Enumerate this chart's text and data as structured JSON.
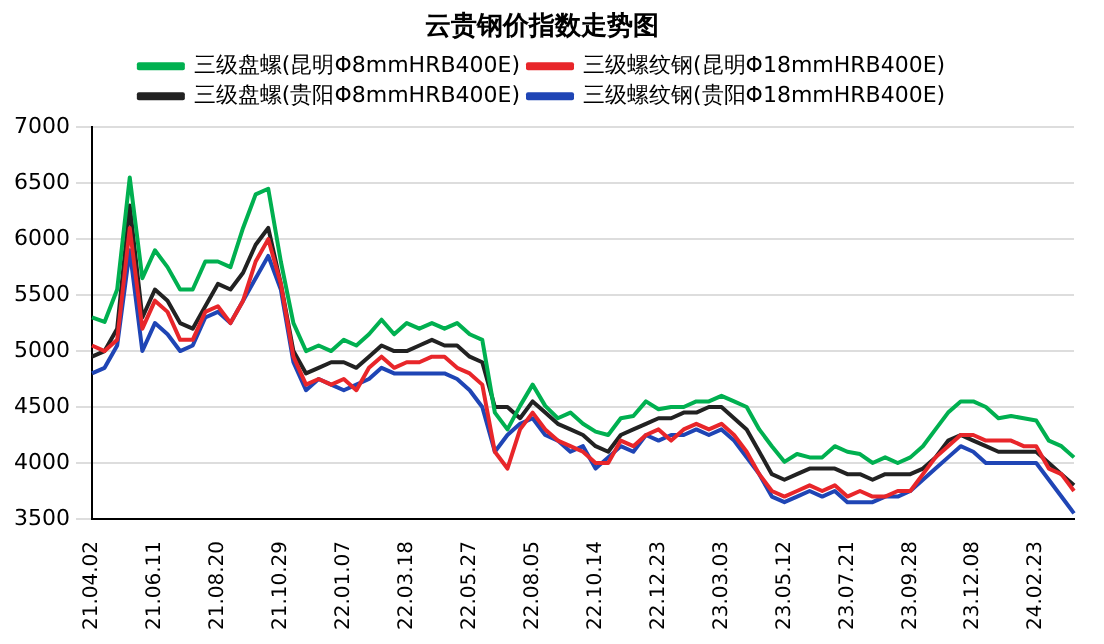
{
  "chart_data": {
    "type": "line",
    "title": "云贵钢价指数走势图",
    "categories": [
      "21.04.02",
      null,
      null,
      null,
      null,
      "21.06.11",
      null,
      null,
      null,
      null,
      "21.08.20",
      null,
      null,
      null,
      null,
      "21.10.29",
      null,
      null,
      null,
      null,
      "22.01.07",
      null,
      null,
      null,
      null,
      "22.03.18",
      null,
      null,
      null,
      null,
      "22.05.27",
      null,
      null,
      null,
      null,
      "22.08.05",
      null,
      null,
      null,
      null,
      "22.10.14",
      null,
      null,
      null,
      null,
      "22.12.23",
      null,
      null,
      null,
      null,
      "23.03.03",
      null,
      null,
      null,
      null,
      "23.05.12",
      null,
      null,
      null,
      null,
      "23.07.21",
      null,
      null,
      null,
      null,
      "23.09.28",
      null,
      null,
      null,
      null,
      "23.12.08",
      null,
      null,
      null,
      null,
      "24.02.23",
      null,
      null,
      null
    ],
    "series": [
      {
        "name": "三级盘螺(昆明Φ8mmHRB400E)",
        "color": "#00b050",
        "values": [
          5300,
          5260,
          5550,
          6550,
          5650,
          5900,
          5750,
          5550,
          5550,
          5800,
          5800,
          5750,
          6100,
          6400,
          6450,
          5800,
          5250,
          5000,
          5050,
          5000,
          5100,
          5050,
          5150,
          5280,
          5150,
          5250,
          5200,
          5250,
          5200,
          5250,
          5150,
          5100,
          4450,
          4300,
          4510,
          4700,
          4510,
          4400,
          4450,
          4350,
          4280,
          4250,
          4400,
          4420,
          4550,
          4480,
          4500,
          4500,
          4550,
          4550,
          4600,
          4550,
          4500,
          4300,
          4150,
          4010,
          4080,
          4050,
          4050,
          4150,
          4100,
          4080,
          4000,
          4050,
          4000,
          4050,
          4150,
          4300,
          4450,
          4550,
          4550,
          4500,
          4400,
          4420,
          4400,
          4380,
          4200,
          4150,
          4050
        ]
      },
      {
        "name": "三级螺纹钢(昆明Φ18mmHRB400E)",
        "color": "#e8262a",
        "values": [
          5050,
          5000,
          5100,
          6100,
          5200,
          5450,
          5350,
          5100,
          5100,
          5350,
          5400,
          5250,
          5450,
          5800,
          6000,
          5600,
          4950,
          4700,
          4750,
          4700,
          4750,
          4650,
          4850,
          4950,
          4850,
          4900,
          4900,
          4950,
          4950,
          4850,
          4800,
          4700,
          4100,
          3950,
          4300,
          4450,
          4300,
          4200,
          4150,
          4100,
          4000,
          4000,
          4200,
          4150,
          4250,
          4300,
          4200,
          4300,
          4350,
          4300,
          4350,
          4250,
          4100,
          3900,
          3750,
          3700,
          3750,
          3800,
          3750,
          3800,
          3700,
          3750,
          3700,
          3700,
          3750,
          3750,
          3900,
          4050,
          4150,
          4250,
          4250,
          4200,
          4200,
          4200,
          4150,
          4150,
          3950,
          3900,
          3750
        ]
      },
      {
        "name": "三级盘螺(贵阳Φ8mmHRB400E)",
        "color": "#222222",
        "values": [
          4950,
          5000,
          5200,
          6300,
          5300,
          5550,
          5450,
          5250,
          5200,
          5400,
          5600,
          5550,
          5700,
          5950,
          6100,
          5600,
          5000,
          4800,
          4850,
          4900,
          4900,
          4850,
          4950,
          5050,
          5000,
          5000,
          5050,
          5100,
          5050,
          5050,
          4950,
          4900,
          4500,
          4500,
          4400,
          4550,
          4450,
          4350,
          4300,
          4250,
          4150,
          4100,
          4250,
          4300,
          4350,
          4400,
          4400,
          4450,
          4450,
          4500,
          4500,
          4400,
          4300,
          4100,
          3900,
          3850,
          3900,
          3950,
          3950,
          3950,
          3900,
          3900,
          3850,
          3900,
          3900,
          3900,
          3950,
          4050,
          4200,
          4250,
          4200,
          4150,
          4100,
          4100,
          4100,
          4100,
          4000,
          3900,
          3800
        ]
      },
      {
        "name": "三级螺纹钢(贵阳Φ18mmHRB400E)",
        "color": "#1f45b5",
        "values": [
          4800,
          4850,
          5050,
          5900,
          5000,
          5250,
          5150,
          5000,
          5050,
          5300,
          5350,
          5250,
          5450,
          5650,
          5850,
          5550,
          4900,
          4650,
          4750,
          4700,
          4650,
          4700,
          4750,
          4850,
          4800,
          4800,
          4800,
          4800,
          4800,
          4750,
          4650,
          4500,
          4100,
          4250,
          4350,
          4400,
          4250,
          4200,
          4100,
          4150,
          3950,
          4050,
          4150,
          4100,
          4250,
          4200,
          4250,
          4250,
          4300,
          4250,
          4300,
          4200,
          4050,
          3900,
          3700,
          3650,
          3700,
          3750,
          3700,
          3750,
          3650,
          3650,
          3650,
          3700,
          3700,
          3750,
          3850,
          3950,
          4050,
          4150,
          4100,
          4000,
          4000,
          4000,
          4000,
          4000,
          3850,
          3700,
          3550
        ]
      }
    ],
    "ylim": [
      3500,
      7000
    ],
    "yticks": [
      3500,
      4000,
      4500,
      5000,
      5500,
      6000,
      6500,
      7000
    ],
    "grid": "y",
    "legend": "top",
    "marker": "none",
    "line_style": "solid"
  }
}
